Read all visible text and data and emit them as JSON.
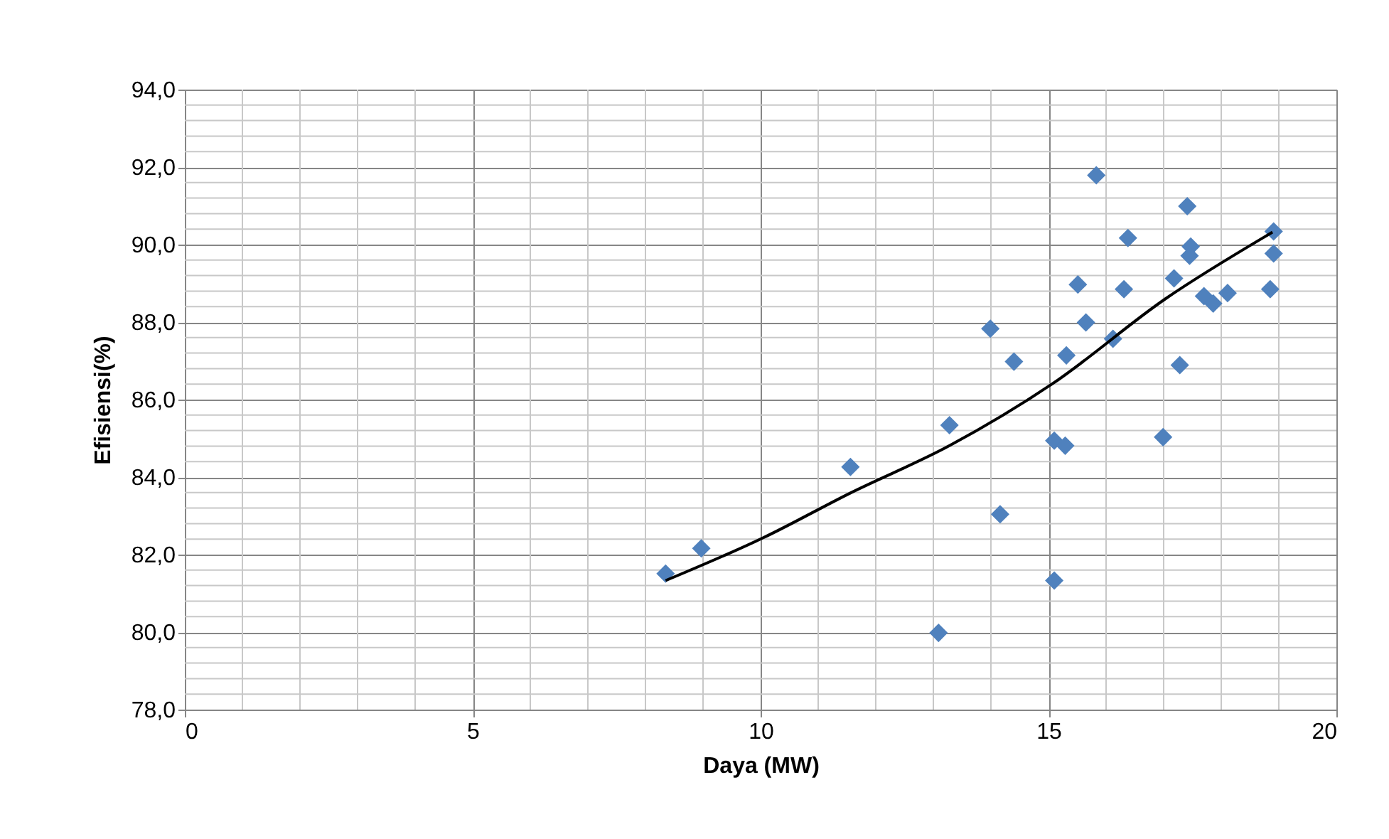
{
  "chart_data": {
    "type": "scatter",
    "xlabel": "Daya (MW)",
    "ylabel": "Efisiensi(%)",
    "xlim": [
      0,
      20
    ],
    "xticks": [
      0,
      5,
      10,
      15,
      20
    ],
    "ylim": [
      78,
      94
    ],
    "yticks": [
      {
        "value": 78,
        "label": "78,0"
      },
      {
        "value": 80,
        "label": "80,0"
      },
      {
        "value": 82,
        "label": "82,0"
      },
      {
        "value": 84,
        "label": "84,0"
      },
      {
        "value": 86,
        "label": "86,0"
      },
      {
        "value": 88,
        "label": "88,0"
      },
      {
        "value": 90,
        "label": "90,0"
      },
      {
        "value": 92,
        "label": "92,0"
      },
      {
        "value": 94,
        "label": "94,0"
      }
    ],
    "grid": true,
    "series": [
      {
        "color": "#4f81bd",
        "marker": "diamond",
        "x": [
          8.35,
          8.97,
          11.56,
          13.28,
          13.09,
          13.99,
          14.4,
          14.16,
          15.1,
          15.1,
          15.29,
          15.31,
          15.51,
          15.65,
          15.83,
          16.12,
          16.31,
          16.38,
          16.99,
          17.18,
          17.28,
          17.41,
          17.47,
          17.45,
          17.7,
          17.86,
          18.11,
          18.85,
          18.91,
          18.91
        ],
        "values": [
          81.51,
          82.16,
          84.26,
          85.34,
          79.98,
          87.83,
          86.98,
          83.04,
          81.33,
          84.94,
          84.81,
          87.14,
          88.97,
          87.99,
          91.79,
          87.57,
          88.85,
          90.17,
          85.03,
          89.13,
          86.89,
          90.99,
          89.95,
          89.71,
          88.67,
          88.48,
          88.75,
          88.85,
          90.34,
          89.77
        ]
      },
      {
        "type": "line",
        "color": "#000000",
        "line_style": "solid",
        "x": [
          8.35,
          10.04,
          11.56,
          13.28,
          15.06,
          17.04,
          18.89
        ],
        "values": [
          81.33,
          82.43,
          83.59,
          84.81,
          86.4,
          88.61,
          90.32
        ]
      }
    ]
  }
}
